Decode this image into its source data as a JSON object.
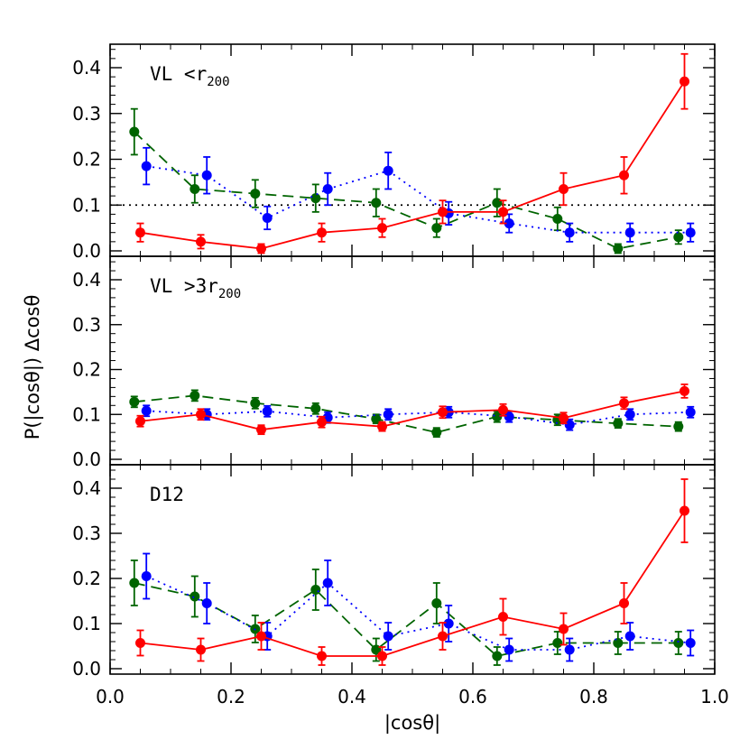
{
  "figure": {
    "xlabel": "|cosθ|",
    "ylabel": "P(|cosθ|)  Δcosθ"
  },
  "chart_data": [
    {
      "type": "line",
      "panel_label": "VL <r",
      "panel_label_sub": "200",
      "xlim": [
        0.0,
        1.0
      ],
      "ylim": [
        0.0,
        0.45
      ],
      "x_ticks": [
        "0.0",
        "0.2",
        "0.4",
        "0.6",
        "0.8",
        "1.0"
      ],
      "y_ticks": [
        "0.0",
        "0.1",
        "0.2",
        "0.3",
        "0.4"
      ],
      "reference_line": 0.1,
      "series": [
        {
          "color": "#006400",
          "style": "dashed",
          "x": [
            0.04,
            0.14,
            0.24,
            0.34,
            0.44,
            0.54,
            0.64,
            0.74,
            0.84,
            0.94
          ],
          "y": [
            0.26,
            0.135,
            0.125,
            0.115,
            0.105,
            0.05,
            0.105,
            0.07,
            0.005,
            0.03
          ],
          "err": [
            0.05,
            0.03,
            0.03,
            0.03,
            0.03,
            0.02,
            0.03,
            0.025,
            0.01,
            0.015
          ]
        },
        {
          "color": "#0000ff",
          "style": "dotted",
          "x": [
            0.06,
            0.16,
            0.26,
            0.36,
            0.46,
            0.56,
            0.66,
            0.76,
            0.86,
            0.96
          ],
          "y": [
            0.185,
            0.165,
            0.072,
            0.135,
            0.175,
            0.082,
            0.06,
            0.04,
            0.04,
            0.04
          ],
          "err": [
            0.04,
            0.04,
            0.025,
            0.035,
            0.04,
            0.025,
            0.02,
            0.02,
            0.02,
            0.02
          ]
        },
        {
          "color": "#ff0000",
          "style": "solid",
          "x": [
            0.05,
            0.15,
            0.25,
            0.35,
            0.45,
            0.55,
            0.65,
            0.75,
            0.85,
            0.95
          ],
          "y": [
            0.04,
            0.02,
            0.005,
            0.04,
            0.05,
            0.085,
            0.085,
            0.135,
            0.165,
            0.37
          ],
          "err": [
            0.02,
            0.015,
            0.01,
            0.02,
            0.02,
            0.025,
            0.025,
            0.035,
            0.04,
            0.06
          ]
        }
      ]
    },
    {
      "type": "line",
      "panel_label": "VL >3r",
      "panel_label_sub": "200",
      "xlim": [
        0.0,
        1.0
      ],
      "ylim": [
        0.0,
        0.45
      ],
      "x_ticks": [],
      "y_ticks": [
        "0.0",
        "0.1",
        "0.2",
        "0.3",
        "0.4"
      ],
      "series": [
        {
          "color": "#006400",
          "style": "dashed",
          "x": [
            0.04,
            0.14,
            0.24,
            0.34,
            0.44,
            0.54,
            0.64,
            0.74,
            0.84,
            0.94
          ],
          "y": [
            0.128,
            0.142,
            0.125,
            0.113,
            0.09,
            0.06,
            0.095,
            0.088,
            0.08,
            0.073
          ],
          "err": [
            0.012,
            0.012,
            0.012,
            0.012,
            0.01,
            0.01,
            0.012,
            0.012,
            0.01,
            0.01
          ]
        },
        {
          "color": "#0000ff",
          "style": "dotted",
          "x": [
            0.06,
            0.16,
            0.26,
            0.36,
            0.46,
            0.56,
            0.66,
            0.76,
            0.86,
            0.96
          ],
          "y": [
            0.108,
            0.1,
            0.107,
            0.093,
            0.1,
            0.105,
            0.095,
            0.077,
            0.1,
            0.105
          ],
          "err": [
            0.012,
            0.012,
            0.012,
            0.012,
            0.012,
            0.012,
            0.012,
            0.012,
            0.012,
            0.012
          ]
        },
        {
          "color": "#ff0000",
          "style": "solid",
          "x": [
            0.05,
            0.15,
            0.25,
            0.35,
            0.45,
            0.55,
            0.65,
            0.75,
            0.85,
            0.95
          ],
          "y": [
            0.085,
            0.1,
            0.066,
            0.083,
            0.073,
            0.105,
            0.11,
            0.092,
            0.125,
            0.152
          ],
          "err": [
            0.012,
            0.012,
            0.01,
            0.012,
            0.01,
            0.013,
            0.013,
            0.012,
            0.013,
            0.015
          ]
        }
      ]
    },
    {
      "type": "line",
      "panel_label": "D12",
      "panel_label_sub": "",
      "xlim": [
        0.0,
        1.0
      ],
      "ylim": [
        0.0,
        0.45
      ],
      "x_ticks": [
        "0.0",
        "0.2",
        "0.4",
        "0.6",
        "0.8",
        "1.0"
      ],
      "y_ticks": [
        "0.0",
        "0.1",
        "0.2",
        "0.3",
        "0.4"
      ],
      "series": [
        {
          "color": "#006400",
          "style": "dashed",
          "x": [
            0.04,
            0.14,
            0.24,
            0.34,
            0.44,
            0.54,
            0.64,
            0.74,
            0.84,
            0.94
          ],
          "y": [
            0.19,
            0.16,
            0.088,
            0.175,
            0.042,
            0.145,
            0.028,
            0.057,
            0.057,
            0.057
          ],
          "err": [
            0.05,
            0.045,
            0.03,
            0.045,
            0.025,
            0.045,
            0.02,
            0.025,
            0.025,
            0.025
          ]
        },
        {
          "color": "#0000ff",
          "style": "dotted",
          "x": [
            0.06,
            0.16,
            0.26,
            0.36,
            0.46,
            0.56,
            0.66,
            0.76,
            0.86,
            0.96
          ],
          "y": [
            0.205,
            0.145,
            0.072,
            0.19,
            0.072,
            0.1,
            0.042,
            0.042,
            0.072,
            0.057
          ],
          "err": [
            0.05,
            0.045,
            0.03,
            0.05,
            0.03,
            0.04,
            0.025,
            0.025,
            0.03,
            0.028
          ]
        },
        {
          "color": "#ff0000",
          "style": "solid",
          "x": [
            0.05,
            0.15,
            0.25,
            0.35,
            0.45,
            0.55,
            0.65,
            0.75,
            0.85,
            0.95
          ],
          "y": [
            0.057,
            0.042,
            0.072,
            0.028,
            0.028,
            0.072,
            0.115,
            0.088,
            0.145,
            0.35
          ],
          "err": [
            0.028,
            0.025,
            0.03,
            0.02,
            0.02,
            0.03,
            0.04,
            0.035,
            0.045,
            0.07
          ]
        }
      ]
    }
  ]
}
